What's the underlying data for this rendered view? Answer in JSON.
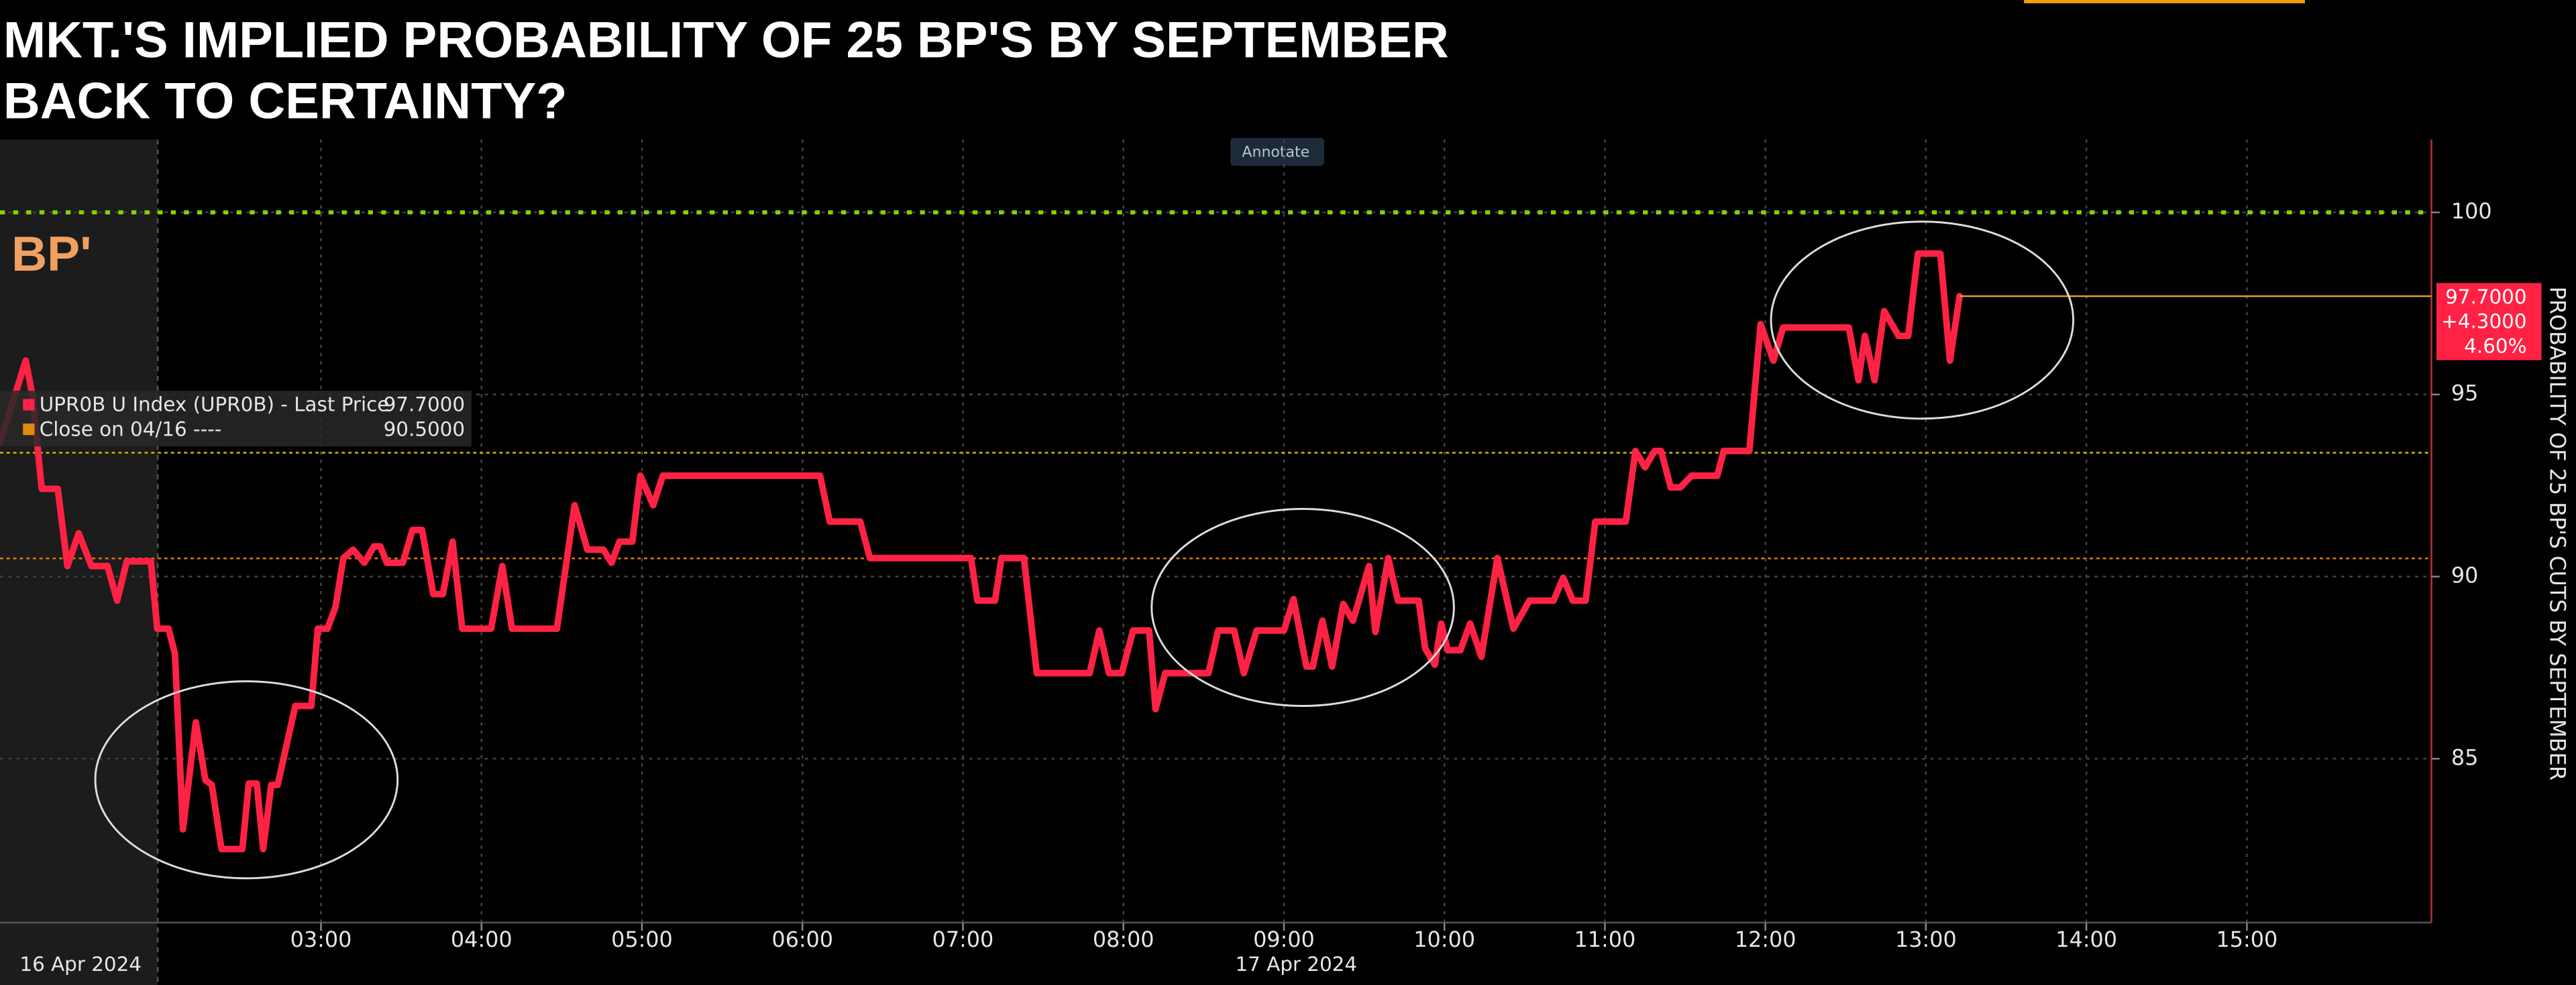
{
  "chart_data": {
    "type": "line",
    "title": "MKT.'S IMPLIED PROBABILITY OF 25  BP'S BY SEPTEMBER",
    "subtitle": "BACK TO CERTAINTY?",
    "panel_label": "BP'",
    "annotate_button": "Annotate",
    "y_axis_label": "PROBABILITY OF 25 BP'S CUTS BY SEPTEMBER",
    "legend": [
      {
        "label": "UPR0B U Index (UPR0B) - Last Price",
        "value_text": "97.7000",
        "color": "#ff2244"
      },
      {
        "label": "Close on 04/16 ----",
        "value_text": "90.5000",
        "color": "#e08a10"
      }
    ],
    "last_value_labels": [
      "97.7000",
      "+4.3000",
      "4.60%"
    ],
    "date_labels": [
      "16 Apr 2024",
      "17 Apr 2024"
    ],
    "reference_lines": [
      {
        "value": 100,
        "color": "#7fd400"
      },
      {
        "value": 90.5,
        "color": "#e07a10"
      },
      {
        "value": 93.4,
        "color": "#d9c400"
      }
    ],
    "grid": true,
    "xlim": [
      1,
      16.15
    ],
    "xticks": [
      {
        "value": 3,
        "label": "03:00"
      },
      {
        "value": 4,
        "label": "04:00"
      },
      {
        "value": 5,
        "label": "05:00"
      },
      {
        "value": 6,
        "label": "06:00"
      },
      {
        "value": 7,
        "label": "07:00"
      },
      {
        "value": 8,
        "label": "08:00"
      },
      {
        "value": 9,
        "label": "09:00"
      },
      {
        "value": 10,
        "label": "10:00"
      },
      {
        "value": 11,
        "label": "11:00"
      },
      {
        "value": 12,
        "label": "12:00"
      },
      {
        "value": 13,
        "label": "13:00"
      },
      {
        "value": 14,
        "label": "14:00"
      },
      {
        "value": 15,
        "label": "15:00"
      }
    ],
    "ylim": [
      80.5,
      102
    ],
    "yticks": [
      85,
      90,
      95,
      100
    ],
    "series": [
      {
        "name": "UPR0B U Index (UPR0B) - Last Price",
        "color": "#ff2244",
        "x": [
          1.0,
          1.08,
          1.16,
          1.2,
          1.26,
          1.36,
          1.42,
          1.49,
          1.57,
          1.67,
          1.73,
          1.79,
          1.94,
          1.98,
          2.05,
          2.09,
          2.14,
          2.22,
          2.28,
          2.32,
          2.38,
          2.51,
          2.55,
          2.6,
          2.64,
          2.69,
          2.73,
          2.84,
          2.94,
          2.98,
          3.04,
          3.09,
          3.14,
          3.2,
          3.27,
          3.33,
          3.37,
          3.41,
          3.51,
          3.57,
          3.63,
          3.7,
          3.76,
          3.82,
          3.88,
          4.06,
          4.13,
          4.19,
          4.47,
          4.58,
          4.66,
          4.76,
          4.81,
          4.86,
          4.94,
          4.99,
          5.07,
          5.13,
          6.11,
          6.17,
          6.36,
          6.42,
          7.05,
          7.09,
          7.2,
          7.24,
          7.38,
          7.46,
          7.79,
          7.85,
          7.91,
          7.99,
          8.06,
          8.16,
          8.2,
          8.26,
          8.53,
          8.59,
          8.69,
          8.75,
          8.83,
          9.0,
          9.06,
          9.14,
          9.18,
          9.24,
          9.3,
          9.37,
          9.43,
          9.47,
          9.53,
          9.57,
          9.65,
          9.71,
          9.84,
          9.88,
          9.94,
          9.98,
          10.02,
          10.1,
          10.16,
          10.23,
          10.33,
          10.43,
          10.53,
          10.68,
          10.74,
          10.8,
          10.88,
          10.94,
          11.13,
          11.19,
          11.25,
          11.31,
          11.35,
          11.41,
          11.47,
          11.54,
          11.7,
          11.74,
          11.9,
          11.97,
          12.05,
          12.11,
          12.52,
          12.58,
          12.62,
          12.68,
          12.74,
          12.83,
          12.89,
          12.95,
          13.09,
          13.15,
          13.21
        ],
        "values": [
          93.67,
          94.8,
          95.93,
          95.03,
          92.41,
          92.41,
          90.29,
          91.19,
          90.29,
          90.29,
          89.34,
          90.42,
          90.42,
          88.57,
          88.57,
          87.89,
          83.06,
          86.0,
          84.41,
          84.28,
          82.52,
          82.52,
          84.32,
          84.32,
          82.52,
          84.28,
          84.28,
          86.45,
          86.45,
          88.57,
          88.57,
          89.16,
          90.51,
          90.74,
          90.38,
          90.83,
          90.83,
          90.38,
          90.38,
          91.28,
          91.28,
          89.52,
          89.52,
          90.96,
          88.57,
          88.57,
          90.29,
          88.57,
          88.57,
          91.96,
          90.74,
          90.74,
          90.38,
          90.96,
          90.96,
          92.77,
          91.96,
          92.77,
          92.77,
          91.51,
          91.51,
          90.51,
          90.51,
          89.34,
          89.34,
          90.51,
          90.51,
          87.35,
          87.35,
          88.52,
          87.35,
          87.35,
          88.52,
          88.52,
          86.36,
          87.35,
          87.35,
          88.52,
          88.52,
          87.35,
          88.52,
          88.52,
          89.38,
          87.53,
          87.53,
          88.79,
          87.53,
          89.25,
          88.79,
          89.38,
          90.29,
          88.48,
          90.51,
          89.34,
          89.34,
          88.03,
          87.58,
          88.71,
          87.98,
          87.98,
          88.71,
          87.8,
          90.51,
          88.57,
          89.34,
          89.34,
          89.97,
          89.34,
          89.34,
          91.51,
          91.51,
          93.45,
          93.0,
          93.45,
          93.45,
          92.45,
          92.45,
          92.77,
          92.77,
          93.45,
          93.45,
          96.93,
          95.93,
          96.84,
          96.84,
          95.39,
          96.61,
          95.39,
          97.29,
          96.61,
          96.61,
          98.87,
          98.87,
          95.93,
          97.7
        ]
      }
    ]
  }
}
